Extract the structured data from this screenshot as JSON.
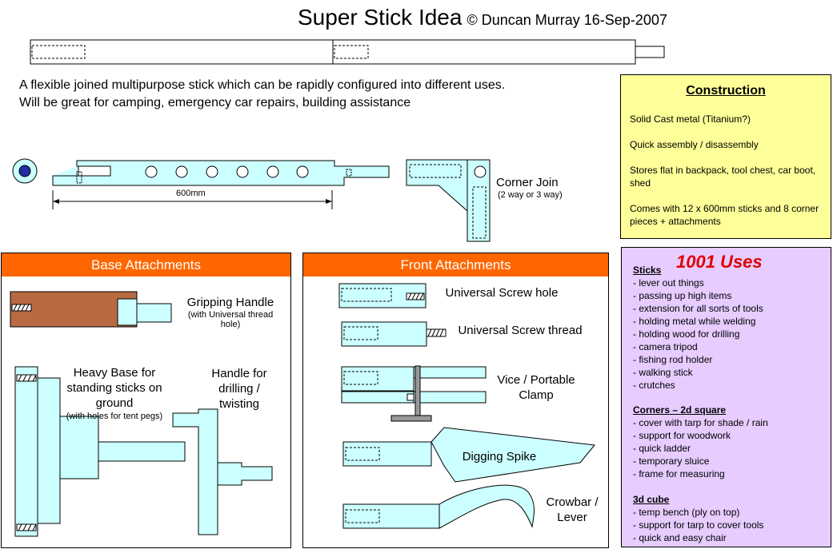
{
  "header": {
    "title": "Super Stick Idea",
    "byline": "© Duncan Murray 16-Sep-2007"
  },
  "intro": [
    "A flexible joined multipurpose stick which can be rapidly configured into different uses.",
    "Will be great for camping, emergency car repairs, building assistance"
  ],
  "diagram": {
    "length_label": "600mm",
    "corner_join": "Corner Join",
    "corner_join_note": "(2 way or 3 way)"
  },
  "construction": {
    "heading": "Construction",
    "items": [
      "Solid Cast metal (Titanium?)",
      "Quick assembly / disassembly",
      "Stores flat in backpack, tool chest, car boot, shed",
      "Comes with 12 x 600mm sticks and 8 corner pieces + attachments"
    ]
  },
  "uses": {
    "headline": "1001 Uses",
    "sticks": {
      "heading": "Sticks",
      "items": [
        "- lever out things",
        "- passing up high items",
        "- extension for all sorts of tools",
        "- holding metal while welding",
        "- holding wood for drilling",
        "- camera tripod",
        "- fishing rod holder",
        "- walking stick",
        "- crutches"
      ]
    },
    "corners": {
      "heading": "Corners – 2d square",
      "items": [
        "- cover with tarp for shade / rain",
        "- support for woodwork",
        "- quick ladder",
        "- temporary sluice",
        "- frame for measuring"
      ]
    },
    "cube": {
      "heading": "3d cube",
      "items": [
        "- temp bench (ply on top)",
        "- support for tarp to cover tools",
        "- quick and easy chair"
      ]
    }
  },
  "base": {
    "heading": "Base Attachments",
    "gripping_handle": "Gripping Handle",
    "gripping_note": "(with Universal thread hole)",
    "heavy_base": "Heavy Base for standing sticks on ground",
    "heavy_base_note": "(with holes for tent pegs)",
    "drill_handle": "Handle for drilling / twisting"
  },
  "front": {
    "heading": "Front Attachments",
    "screw_hole": "Universal Screw hole",
    "screw_thread": "Universal Screw thread",
    "vice": "Vice / Portable Clamp",
    "spike": "Digging Spike",
    "crowbar": "Crowbar / Lever"
  },
  "colors": {
    "part": "#ccffff",
    "wood": "#b86a43",
    "header_orange": "#ff6600",
    "note_yellow": "#ffff99",
    "note_purple": "#e6ccff",
    "accent_red": "#e00000",
    "dot_blue": "#1f2fa0"
  }
}
